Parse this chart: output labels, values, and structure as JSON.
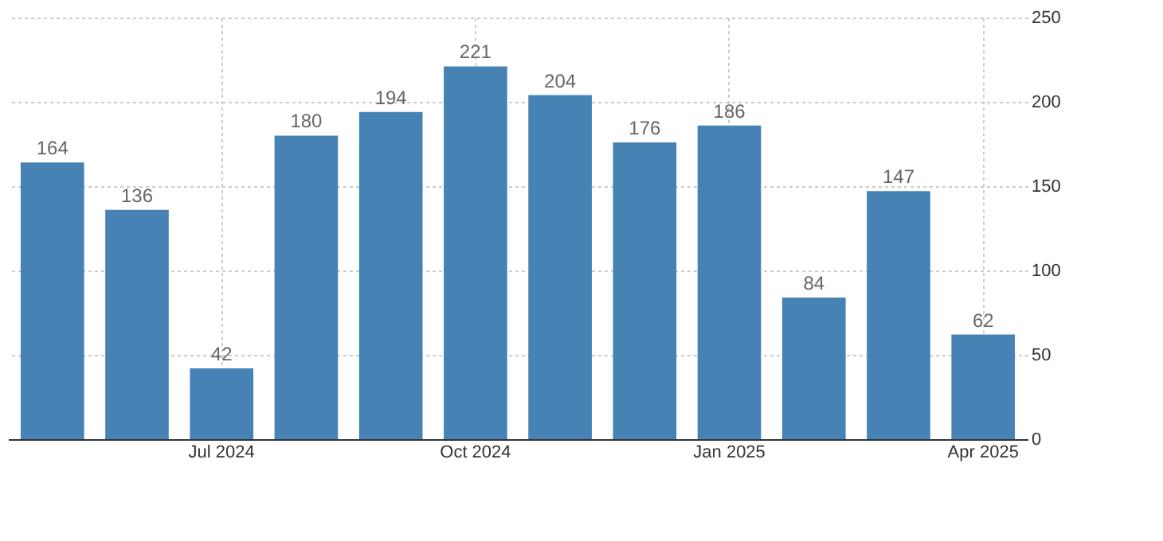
{
  "chart_data": {
    "type": "bar",
    "categories": [
      null,
      null,
      "Jul 2024",
      null,
      null,
      "Oct 2024",
      null,
      null,
      "Jan 2025",
      null,
      null,
      "Apr 2025"
    ],
    "values": [
      164,
      136,
      42,
      180,
      194,
      221,
      204,
      176,
      186,
      84,
      147,
      62
    ],
    "color": "#4682b4",
    "ylim": [
      0,
      250
    ],
    "yticks": [
      0,
      50,
      100,
      150,
      200,
      250
    ],
    "grid": true,
    "data_labels": true
  }
}
